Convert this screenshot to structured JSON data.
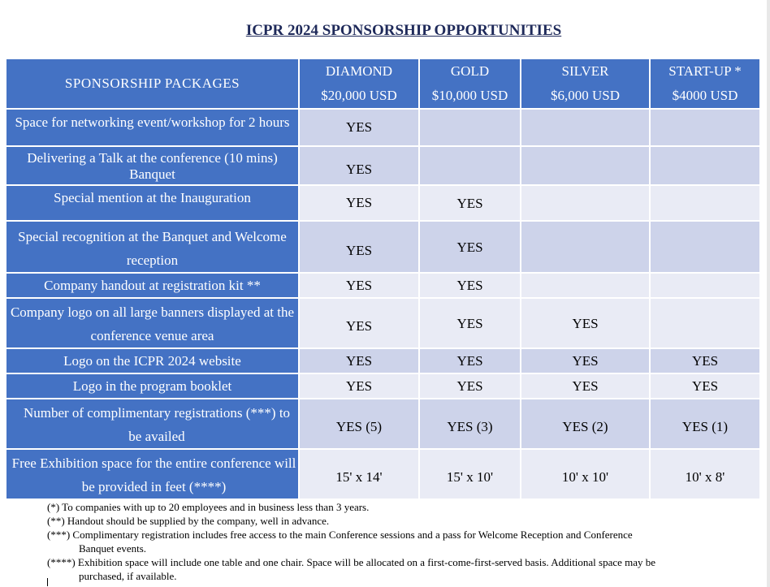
{
  "title": "ICPR 2024 SPONSORSHIP OPPORTUNITIES",
  "header": {
    "packages_label": "SPONSORSHIP PACKAGES",
    "tiers": [
      {
        "name": "DIAMOND",
        "price": "$20,000 USD"
      },
      {
        "name": "GOLD",
        "price": "$10,000 USD"
      },
      {
        "name": "SILVER",
        "price": "$6,000 USD"
      },
      {
        "name": "START-UP *",
        "price": "$4000 USD"
      }
    ]
  },
  "rows": [
    {
      "feature": "Space for networking event/workshop for 2 hours",
      "values": [
        "YES",
        "",
        "",
        ""
      ]
    },
    {
      "feature": "Delivering a Talk at the conference (10 mins) Banquet",
      "values": [
        "YES",
        "",
        "",
        ""
      ]
    },
    {
      "feature": "Special mention at the Inauguration",
      "values": [
        "YES",
        "YES",
        "",
        ""
      ]
    },
    {
      "feature": "Special recognition at the Banquet and Welcome reception",
      "values": [
        "YES",
        "YES",
        "",
        ""
      ]
    },
    {
      "feature": "Company handout at registration kit **",
      "values": [
        "YES",
        "YES",
        "",
        ""
      ]
    },
    {
      "feature": "Company logo on all large banners displayed at the conference venue area",
      "values": [
        "YES",
        "YES",
        "YES",
        ""
      ]
    },
    {
      "feature": "Logo on the ICPR 2024 website",
      "values": [
        "YES",
        "YES",
        "YES",
        "YES"
      ]
    },
    {
      "feature": "Logo in the program booklet",
      "values": [
        "YES",
        "YES",
        "YES",
        "YES"
      ]
    },
    {
      "feature": "Number of complimentary registrations (***) to be availed",
      "values": [
        "YES (5)",
        "YES (3)",
        "YES (2)",
        "YES (1)"
      ]
    },
    {
      "feature": "Free Exhibition space for the entire conference will be provided in feet (****)",
      "values": [
        "15' x 14'",
        "15' x 10'",
        "10' x 10'",
        "10' x 8'"
      ]
    }
  ],
  "notes": [
    {
      "line": "(*) To companies with up to 20 employees and in business less than 3 years.",
      "continuation": ""
    },
    {
      "line": "(**) Handout should be supplied by the company, well in advance.",
      "continuation": ""
    },
    {
      "line": "(***) Complimentary registration includes free access to the main Conference sessions and a pass for Welcome Reception and Conference",
      "continuation": "Banquet events."
    },
    {
      "line": "(****) Exhibition space will include one table and one chair. Space will be allocated on a first-come-first-served basis. Additional space may be",
      "continuation": "purchased, if available."
    }
  ]
}
